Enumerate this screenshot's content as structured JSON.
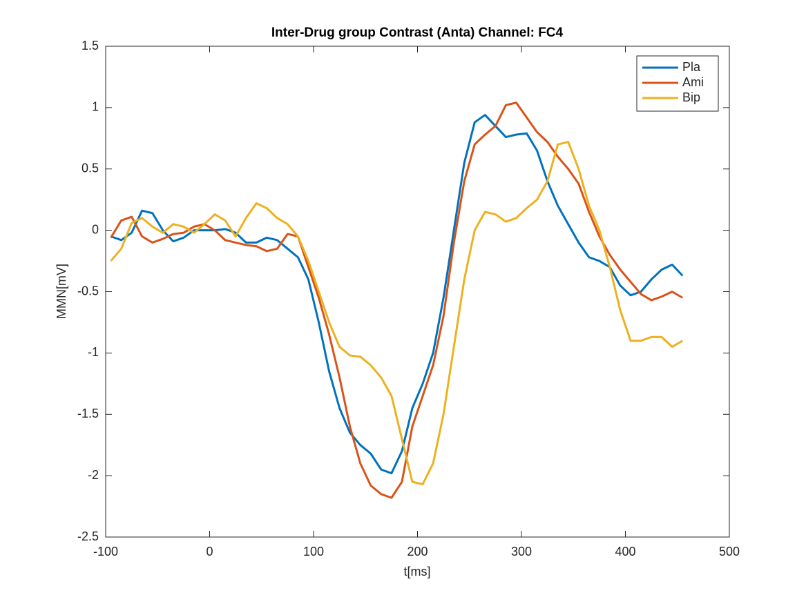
{
  "chart_data": {
    "type": "line",
    "title": "Inter-Drug group Contrast (Anta) Channel: FC4",
    "x_label": "t[ms]",
    "y_label": "MMN[mV]",
    "x": [
      -95,
      -85,
      -75,
      -65,
      -55,
      -45,
      -35,
      -25,
      -15,
      -5,
      5,
      15,
      25,
      35,
      45,
      55,
      65,
      75,
      85,
      95,
      105,
      115,
      125,
      135,
      145,
      155,
      165,
      175,
      185,
      195,
      205,
      215,
      225,
      235,
      245,
      255,
      265,
      275,
      285,
      295,
      305,
      315,
      325,
      335,
      345,
      355,
      365,
      375,
      385,
      395,
      405,
      415,
      425,
      435,
      445,
      455
    ],
    "series": [
      {
        "name": "Pla",
        "color": "#0072bd",
        "values": [
          -0.05,
          -0.08,
          -0.02,
          0.16,
          0.14,
          0.0,
          -0.09,
          -0.06,
          0.0,
          0.0,
          0.0,
          0.01,
          -0.02,
          -0.1,
          -0.1,
          -0.06,
          -0.08,
          -0.15,
          -0.22,
          -0.4,
          -0.75,
          -1.15,
          -1.45,
          -1.65,
          -1.75,
          -1.82,
          -1.95,
          -1.98,
          -1.8,
          -1.45,
          -1.25,
          -1.0,
          -0.55,
          0.0,
          0.55,
          0.88,
          0.94,
          0.85,
          0.76,
          0.78,
          0.79,
          0.65,
          0.4,
          0.2,
          0.05,
          -0.1,
          -0.22,
          -0.25,
          -0.3,
          -0.45,
          -0.53,
          -0.5,
          -0.4,
          -0.32,
          -0.28,
          -0.37
        ]
      },
      {
        "name": "Ami",
        "color": "#d95319",
        "values": [
          -0.06,
          0.08,
          0.11,
          -0.05,
          -0.1,
          -0.07,
          -0.03,
          -0.02,
          0.03,
          0.05,
          0.0,
          -0.08,
          -0.1,
          -0.12,
          -0.13,
          -0.17,
          -0.15,
          -0.03,
          -0.05,
          -0.3,
          -0.55,
          -0.85,
          -1.2,
          -1.6,
          -1.9,
          -2.08,
          -2.15,
          -2.18,
          -2.05,
          -1.6,
          -1.35,
          -1.1,
          -0.7,
          -0.1,
          0.4,
          0.7,
          0.78,
          0.85,
          1.02,
          1.04,
          0.92,
          0.8,
          0.72,
          0.6,
          0.5,
          0.38,
          0.15,
          -0.05,
          -0.2,
          -0.32,
          -0.42,
          -0.52,
          -0.57,
          -0.54,
          -0.5,
          -0.55
        ]
      },
      {
        "name": "Bip",
        "color": "#edb120",
        "values": [
          -0.25,
          -0.15,
          0.06,
          0.1,
          0.03,
          -0.02,
          0.05,
          0.03,
          -0.02,
          0.05,
          0.13,
          0.08,
          -0.05,
          0.1,
          0.22,
          0.18,
          0.1,
          0.05,
          -0.05,
          -0.25,
          -0.5,
          -0.75,
          -0.95,
          -1.02,
          -1.03,
          -1.1,
          -1.2,
          -1.35,
          -1.7,
          -2.05,
          -2.07,
          -1.9,
          -1.5,
          -0.95,
          -0.4,
          0.0,
          0.15,
          0.13,
          0.07,
          0.1,
          0.18,
          0.25,
          0.4,
          0.7,
          0.72,
          0.5,
          0.2,
          0.0,
          -0.3,
          -0.65,
          -0.9,
          -0.9,
          -0.87,
          -0.87,
          -0.95,
          -0.9
        ]
      }
    ],
    "xlim": [
      -100,
      500
    ],
    "xticks": [
      -100,
      0,
      100,
      200,
      300,
      400,
      500
    ],
    "ylim": [
      -2.5,
      1.5
    ],
    "yticks": [
      -2.5,
      -2,
      -1.5,
      -1,
      -0.5,
      0,
      0.5,
      1,
      1.5
    ],
    "grid": false,
    "legend_position": "top-right"
  }
}
